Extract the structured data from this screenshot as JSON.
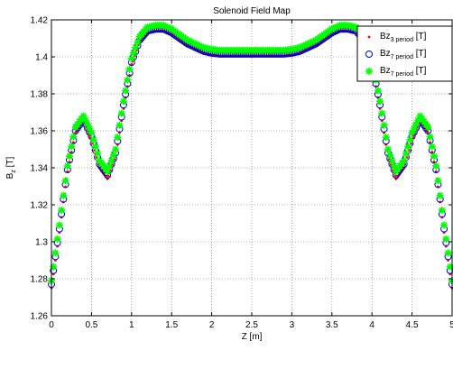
{
  "chart_data": {
    "type": "scatter",
    "title": "Solenoid Field Map",
    "xlabel": "Z [m]",
    "ylabel": {
      "base": "B",
      "sub": "z",
      "suffix": " [T]"
    },
    "xlim": [
      0,
      5
    ],
    "ylim": [
      1.26,
      1.42
    ],
    "xticks": [
      0,
      0.5,
      1,
      1.5,
      2,
      2.5,
      3,
      3.5,
      4,
      4.5,
      5
    ],
    "xtick_labels": [
      "0",
      "0.5",
      "1",
      "1.5",
      "2",
      "2.5",
      "3",
      "3.5",
      "4",
      "4.5",
      "5"
    ],
    "yticks": [
      1.26,
      1.28,
      1.3,
      1.32,
      1.34,
      1.36,
      1.38,
      1.4,
      1.42
    ],
    "ytick_labels": [
      "1.26",
      "1.28",
      "1.3",
      "1.32",
      "1.34",
      "1.36",
      "1.38",
      "1.4",
      "1.42"
    ],
    "grid": true,
    "legend_position": "top-right",
    "series": [
      {
        "key": "bz3",
        "name": "Bz_{3 period} [T]",
        "label_base": "Bz",
        "label_sub": "3 period",
        "label_suffix": " [T]",
        "marker": "dot",
        "color": "#ff0000",
        "x": [
          0,
          0.1,
          0.2,
          0.3,
          0.4,
          0.5,
          0.6,
          0.7,
          0.8,
          0.9,
          1.0,
          1.1,
          1.2,
          1.3,
          1.4,
          1.5,
          1.6,
          1.7,
          1.8,
          1.9,
          2.0,
          2.1,
          2.2,
          2.3,
          2.4,
          2.5,
          2.6,
          2.7,
          2.8,
          2.9,
          3.0,
          3.1,
          3.2,
          3.3,
          3.4,
          3.5,
          3.6,
          3.7,
          3.8,
          3.9,
          4.0,
          4.1,
          4.2,
          4.3,
          4.4,
          4.5,
          4.6,
          4.7,
          4.8,
          4.9,
          5.0
        ],
        "y": [
          1.275,
          1.305,
          1.338,
          1.359,
          1.365,
          1.355,
          1.34,
          1.334,
          1.346,
          1.372,
          1.396,
          1.408,
          1.413,
          1.414,
          1.414,
          1.412,
          1.409,
          1.406,
          1.404,
          1.402,
          1.401,
          1.4005,
          1.4005,
          1.4005,
          1.4005,
          1.4005,
          1.4005,
          1.4005,
          1.4005,
          1.4005,
          1.401,
          1.402,
          1.404,
          1.406,
          1.409,
          1.412,
          1.414,
          1.414,
          1.413,
          1.408,
          1.396,
          1.372,
          1.346,
          1.334,
          1.34,
          1.355,
          1.365,
          1.359,
          1.338,
          1.305,
          1.275
        ]
      },
      {
        "key": "bz7o",
        "name": "Bz_{7 period} [T]",
        "label_base": "Bz",
        "label_sub": "7 period",
        "label_suffix": " [T]",
        "marker": "circle",
        "color": "#0000cc",
        "x": [
          0,
          0.1,
          0.2,
          0.3,
          0.4,
          0.5,
          0.6,
          0.7,
          0.8,
          0.9,
          1.0,
          1.1,
          1.2,
          1.3,
          1.4,
          1.5,
          1.6,
          1.7,
          1.8,
          1.9,
          2.0,
          2.1,
          2.2,
          2.3,
          2.4,
          2.5,
          2.6,
          2.7,
          2.8,
          2.9,
          3.0,
          3.1,
          3.2,
          3.3,
          3.4,
          3.5,
          3.6,
          3.7,
          3.8,
          3.9,
          4.0,
          4.1,
          4.2,
          4.3,
          4.4,
          4.5,
          4.6,
          4.7,
          4.8,
          4.9,
          5.0
        ],
        "y": [
          1.277,
          1.307,
          1.339,
          1.36,
          1.366,
          1.357,
          1.342,
          1.336,
          1.348,
          1.374,
          1.397,
          1.409,
          1.414,
          1.415,
          1.415,
          1.413,
          1.41,
          1.407,
          1.405,
          1.403,
          1.402,
          1.4015,
          1.4015,
          1.4015,
          1.4015,
          1.4015,
          1.4015,
          1.4015,
          1.4015,
          1.4015,
          1.402,
          1.403,
          1.405,
          1.407,
          1.41,
          1.413,
          1.415,
          1.415,
          1.414,
          1.409,
          1.397,
          1.374,
          1.348,
          1.336,
          1.342,
          1.357,
          1.366,
          1.36,
          1.339,
          1.307,
          1.277
        ]
      },
      {
        "key": "bz7s",
        "name": "Bz_{7 period} [T]",
        "label_base": "Bz",
        "label_sub": "7 period",
        "label_suffix": " [T]",
        "marker": "star",
        "color": "#00ff00",
        "x": [
          0,
          0.1,
          0.2,
          0.3,
          0.4,
          0.5,
          0.6,
          0.7,
          0.8,
          0.9,
          1.0,
          1.1,
          1.2,
          1.3,
          1.4,
          1.5,
          1.6,
          1.7,
          1.8,
          1.9,
          2.0,
          2.1,
          2.2,
          2.3,
          2.4,
          2.5,
          2.6,
          2.7,
          2.8,
          2.9,
          3.0,
          3.1,
          3.2,
          3.3,
          3.4,
          3.5,
          3.6,
          3.7,
          3.8,
          3.9,
          4.0,
          4.1,
          4.2,
          4.3,
          4.4,
          4.5,
          4.6,
          4.7,
          4.8,
          4.9,
          5.0
        ],
        "y": [
          1.279,
          1.309,
          1.341,
          1.362,
          1.368,
          1.359,
          1.344,
          1.338,
          1.35,
          1.376,
          1.399,
          1.411,
          1.416,
          1.417,
          1.417,
          1.415,
          1.412,
          1.409,
          1.407,
          1.405,
          1.404,
          1.4035,
          1.4035,
          1.4035,
          1.4035,
          1.4035,
          1.4035,
          1.4035,
          1.4035,
          1.4035,
          1.404,
          1.405,
          1.407,
          1.409,
          1.412,
          1.415,
          1.417,
          1.417,
          1.416,
          1.411,
          1.399,
          1.376,
          1.35,
          1.338,
          1.344,
          1.359,
          1.368,
          1.362,
          1.341,
          1.309,
          1.279
        ]
      }
    ]
  }
}
